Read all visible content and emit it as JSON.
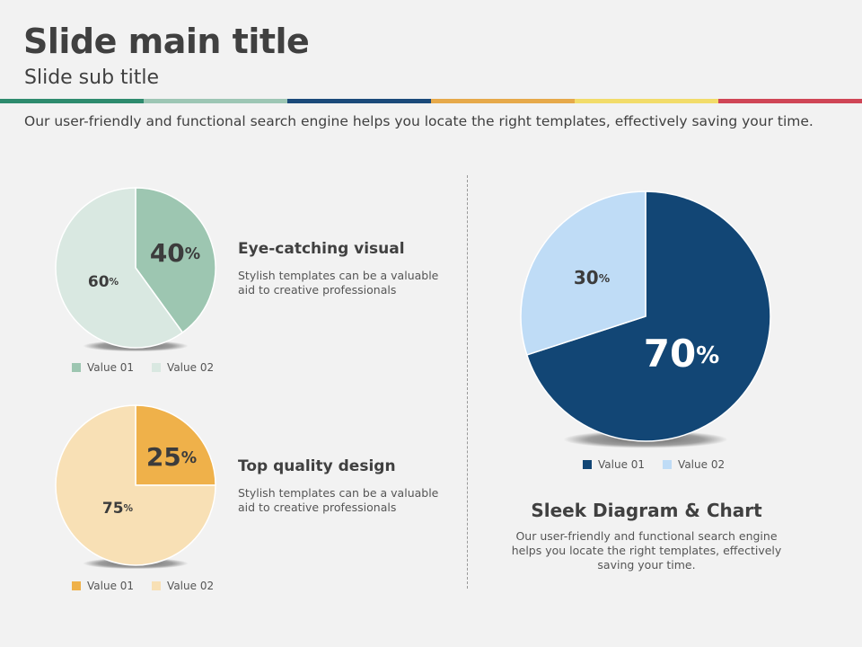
{
  "header": {
    "title": "Slide main title",
    "subtitle": "Slide sub title",
    "intro": "Our user-friendly and functional search engine helps you locate the right templates, effectively saving your time.",
    "stripe_colors": [
      "#2e8b6e",
      "#9dc6b4",
      "#1b4a7a",
      "#e6a94a",
      "#f2dc6a",
      "#cf4556"
    ]
  },
  "chart_data": [
    {
      "type": "pie",
      "id": "pie1",
      "categories": [
        "Value 01",
        "Value 02"
      ],
      "values": [
        40,
        60
      ],
      "labels": [
        "40",
        "60"
      ],
      "unit": "%",
      "colors": [
        "#9dc6b1",
        "#d9e8e1"
      ],
      "heading": "Eye-catching visual",
      "body": "Stylish templates can be a valuable aid to creative professionals"
    },
    {
      "type": "pie",
      "id": "pie2",
      "categories": [
        "Value 01",
        "Value 02"
      ],
      "values": [
        25,
        75
      ],
      "labels": [
        "25",
        "75"
      ],
      "unit": "%",
      "colors": [
        "#efb14a",
        "#f8e0b5"
      ],
      "heading": "Top quality design",
      "body": "Stylish templates can be a valuable aid to creative professionals"
    },
    {
      "type": "pie",
      "id": "pie3",
      "categories": [
        "Value 01",
        "Value 02"
      ],
      "values": [
        70,
        30
      ],
      "labels": [
        "70",
        "30"
      ],
      "unit": "%",
      "colors": [
        "#124675",
        "#bfdcf6"
      ],
      "heading": "Sleek Diagram & Chart",
      "body": "Our user-friendly and functional search engine helps you locate the right templates, effectively saving your time."
    }
  ]
}
